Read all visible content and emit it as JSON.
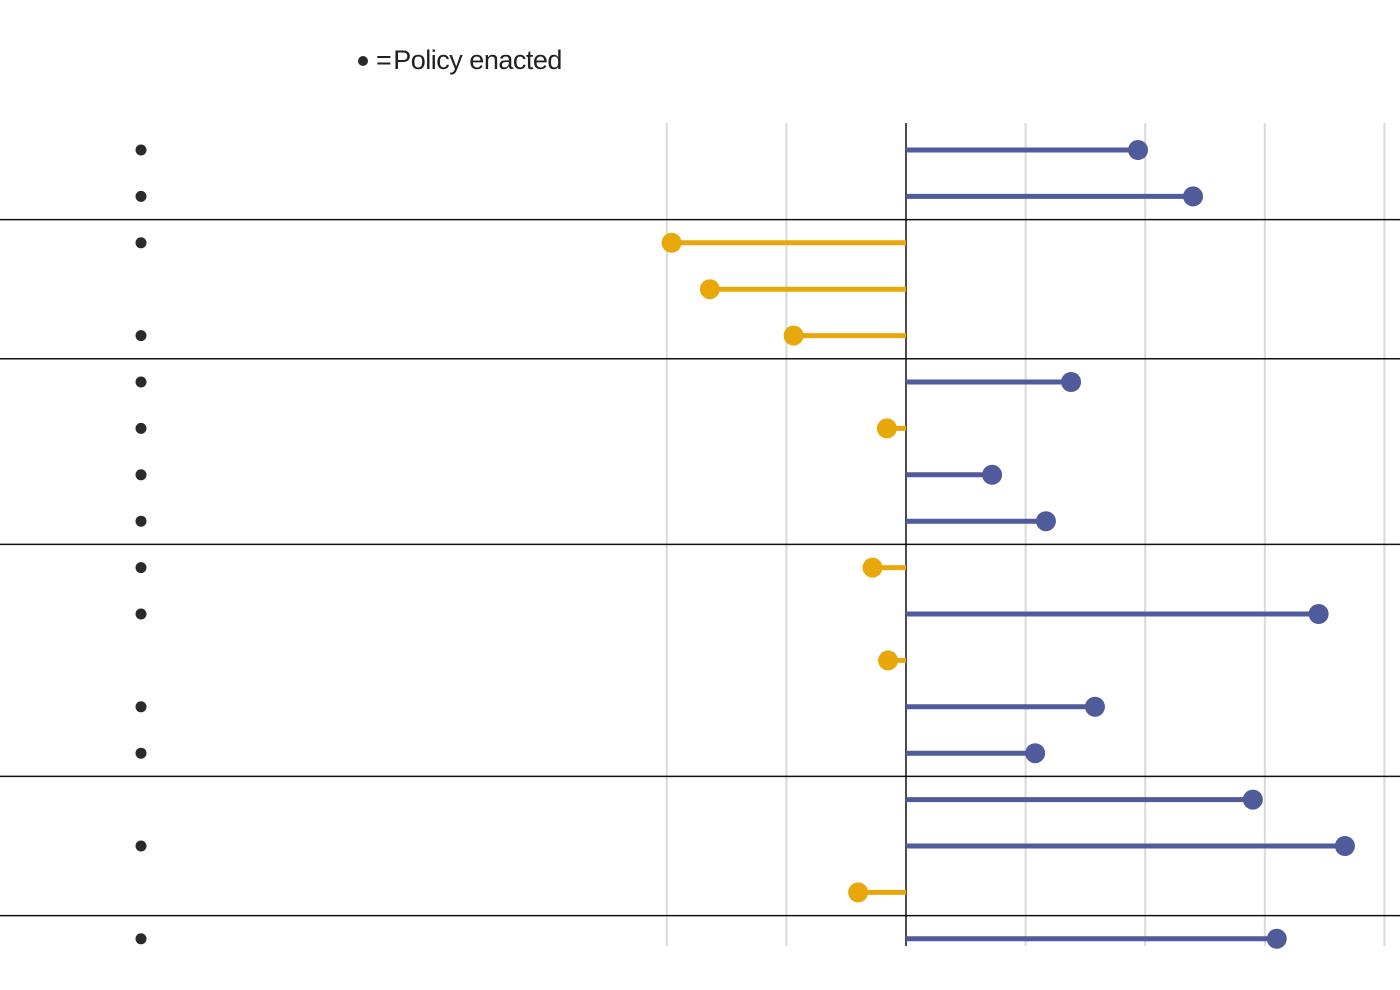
{
  "legend": {
    "symbol": "=",
    "label": "Policy enacted",
    "dot_color": "#2a2a2a"
  },
  "chart_data": {
    "type": "lollipop",
    "orientation": "horizontal",
    "grid": true,
    "colors": {
      "positive": "#4f5b9b",
      "negative": "#e8a80c",
      "enacted_dot": "#2a2a2a",
      "grid": "#d9d9d9",
      "separator": "#111111",
      "zero_line": "#111111"
    },
    "xlim": [
      -2,
      4
    ],
    "gridlines": [
      -2,
      -1,
      1,
      2,
      3,
      4
    ],
    "values": [
      1.94,
      2.4,
      -1.96,
      -1.64,
      -0.94,
      1.38,
      -0.16,
      0.72,
      1.17,
      -0.28,
      3.45,
      -0.15,
      1.58,
      1.08,
      2.9,
      3.67,
      -0.4,
      3.1
    ],
    "enacted": [
      true,
      true,
      true,
      false,
      true,
      true,
      true,
      true,
      true,
      true,
      true,
      false,
      true,
      true,
      false,
      true,
      false,
      true
    ],
    "groups": [
      {
        "start": 0,
        "end": 1
      },
      {
        "start": 2,
        "end": 4
      },
      {
        "start": 5,
        "end": 8
      },
      {
        "start": 9,
        "end": 13
      },
      {
        "start": 14,
        "end": 16
      },
      {
        "start": 17,
        "end": 17
      }
    ]
  }
}
